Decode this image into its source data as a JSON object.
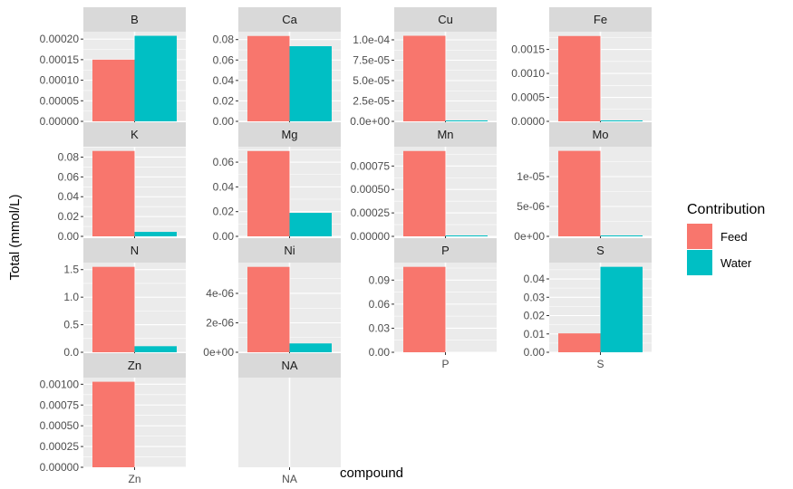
{
  "chart_data": {
    "type": "bar",
    "title": "",
    "xlabel": "compound",
    "ylabel": "Total (mmol/L)",
    "colors": {
      "Feed": "#F8766D",
      "Water": "#00BFC4",
      "panel_bg": "#EBEBEB",
      "strip_bg": "#D9D9D9",
      "grid": "#FFFFFF"
    },
    "legend": {
      "title": "Contribution",
      "position": "right",
      "entries": [
        "Feed",
        "Water"
      ]
    },
    "grid": true,
    "panels": [
      {
        "strip": "B",
        "category": "B",
        "feed": 0.00015,
        "water": 0.000208,
        "ylim": [
          0,
          0.000218
        ],
        "ticks": [
          0,
          5e-05,
          0.0001,
          0.00015,
          0.0002
        ],
        "tick_labels": [
          "0.00000",
          "0.00005",
          "0.00010",
          "0.00015",
          "0.00020"
        ]
      },
      {
        "strip": "Ca",
        "category": "Ca",
        "feed": 0.0835,
        "water": 0.0735,
        "ylim": [
          0,
          0.0877
        ],
        "ticks": [
          0,
          0.02,
          0.04,
          0.06,
          0.08
        ],
        "tick_labels": [
          "0.00",
          "0.02",
          "0.04",
          "0.06",
          "0.08"
        ]
      },
      {
        "strip": "Cu",
        "category": "Cu",
        "feed": 0.000105,
        "water": 8e-07,
        "ylim": [
          0,
          0.00011
        ],
        "ticks": [
          0,
          2.5e-05,
          5e-05,
          7.5e-05,
          0.0001
        ],
        "tick_labels": [
          "0.0e+00",
          "2.5e-05",
          "5.0e-05",
          "7.5e-05",
          "1.0e-04"
        ]
      },
      {
        "strip": "Fe",
        "category": "Fe",
        "feed": 0.00178,
        "water": 1.5e-05,
        "ylim": [
          0,
          0.00187
        ],
        "ticks": [
          0,
          0.0005,
          0.001,
          0.0015
        ],
        "tick_labels": [
          "0.0000",
          "0.0005",
          "0.0010",
          "0.0015"
        ]
      },
      {
        "strip": "K",
        "category": "K",
        "feed": 0.0862,
        "water": 0.0045,
        "ylim": [
          0,
          0.0905
        ],
        "ticks": [
          0,
          0.02,
          0.04,
          0.06,
          0.08
        ],
        "tick_labels": [
          "0.00",
          "0.02",
          "0.04",
          "0.06",
          "0.08"
        ]
      },
      {
        "strip": "Mg",
        "category": "Mg",
        "feed": 0.069,
        "water": 0.019,
        "ylim": [
          0,
          0.0725
        ],
        "ticks": [
          0,
          0.02,
          0.04,
          0.06
        ],
        "tick_labels": [
          "0.00",
          "0.02",
          "0.04",
          "0.06"
        ]
      },
      {
        "strip": "Mn",
        "category": "Mn",
        "feed": 0.00091,
        "water": 5e-07,
        "ylim": [
          0,
          0.000956
        ],
        "ticks": [
          0,
          0.00025,
          0.0005,
          0.00075
        ],
        "tick_labels": [
          "0.00000",
          "0.00025",
          "0.00050",
          "0.00075"
        ]
      },
      {
        "strip": "Mo",
        "category": "Mo",
        "feed": 1.43e-05,
        "water": 1e-07,
        "ylim": [
          0,
          1.5e-05
        ],
        "ticks": [
          0,
          5e-06,
          1e-05
        ],
        "tick_labels": [
          "0e+00",
          "5e-06",
          "1e-05"
        ]
      },
      {
        "strip": "N",
        "category": "N",
        "feed": 1.55,
        "water": 0.11,
        "ylim": [
          0,
          1.627
        ],
        "ticks": [
          0,
          0.5,
          1.0,
          1.5
        ],
        "tick_labels": [
          "0.0",
          "0.5",
          "1.0",
          "1.5"
        ]
      },
      {
        "strip": "Ni",
        "category": "Ni",
        "feed": 5.8e-06,
        "water": 6e-07,
        "ylim": [
          0,
          6.09e-06
        ],
        "ticks": [
          0,
          2e-06,
          4e-06
        ],
        "tick_labels": [
          "0e+00",
          "2e-06",
          "4e-06"
        ]
      },
      {
        "strip": "P",
        "category": "P",
        "feed": 0.1065,
        "water": 0.0,
        "ylim": [
          0,
          0.1118
        ],
        "ticks": [
          0,
          0.03,
          0.06,
          0.09
        ],
        "tick_labels": [
          "0.00",
          "0.03",
          "0.06",
          "0.09"
        ]
      },
      {
        "strip": "S",
        "category": "S",
        "feed": 0.0103,
        "water": 0.0466,
        "ylim": [
          0,
          0.0489
        ],
        "ticks": [
          0,
          0.01,
          0.02,
          0.03,
          0.04
        ],
        "tick_labels": [
          "0.00",
          "0.01",
          "0.02",
          "0.03",
          "0.04"
        ]
      },
      {
        "strip": "Zn",
        "category": "Zn",
        "feed": 0.00103,
        "water": null,
        "ylim": [
          0,
          0.00108
        ],
        "ticks": [
          0,
          0.00025,
          0.0005,
          0.00075,
          0.001
        ],
        "tick_labels": [
          "0.00000",
          "0.00025",
          "0.00050",
          "0.00075",
          "0.00100"
        ]
      },
      {
        "strip": "NA",
        "category": "NA",
        "feed": null,
        "water": null,
        "ylim": null,
        "ticks": [],
        "tick_labels": []
      }
    ]
  }
}
